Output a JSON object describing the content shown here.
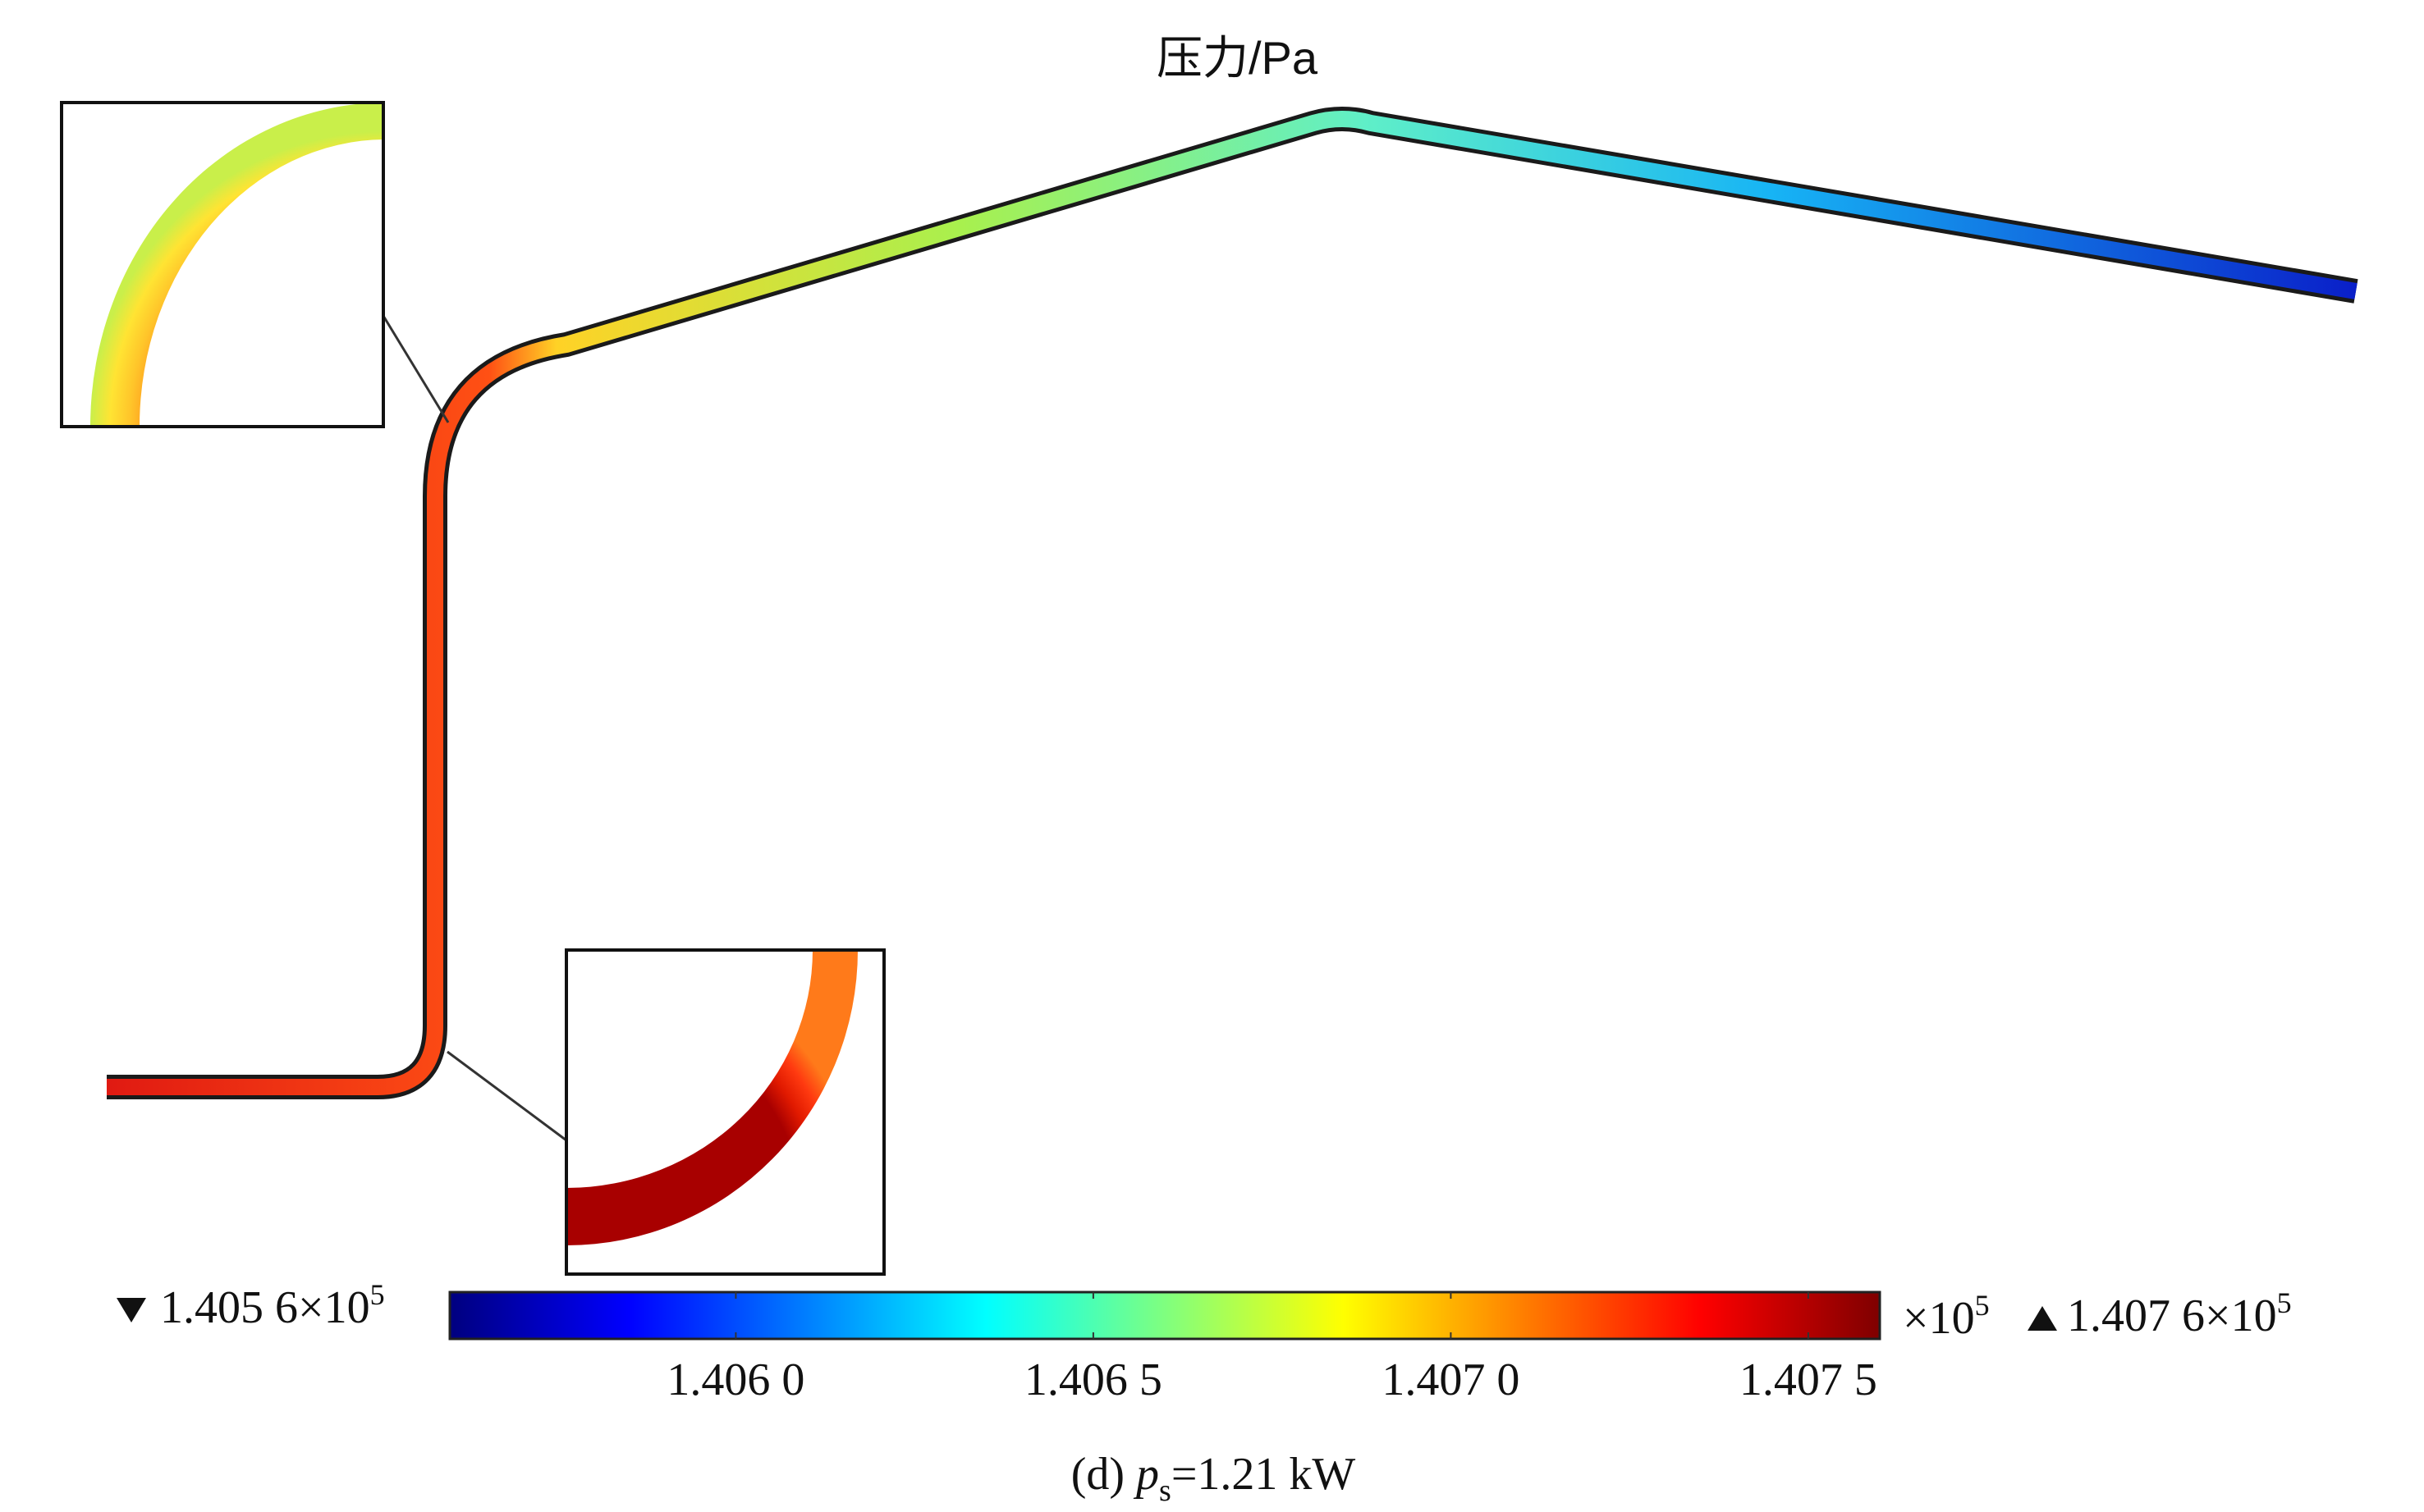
{
  "figure": {
    "title": "压力/Pa",
    "caption_prefix": "(d)",
    "caption_var": "p",
    "caption_sub": "s",
    "caption_suffix": "=1.21 kW",
    "quantity": "pressure"
  },
  "colorbar": {
    "colormap": "rainbow",
    "min_label": "1.405 6×10",
    "min_exp": "5",
    "max_label": "1.407 6×10",
    "max_exp": "5",
    "multiplier": "×10",
    "multiplier_exp": "5",
    "min_value": 1.4056,
    "max_value": 1.4076,
    "ticks": [
      {
        "value": 1.406,
        "label": "1.406 0"
      },
      {
        "value": 1.4065,
        "label": "1.406 5"
      },
      {
        "value": 1.407,
        "label": "1.407 0"
      },
      {
        "value": 1.4075,
        "label": "1.407 5"
      }
    ],
    "stops": [
      "#00007f",
      "#0000ff",
      "#007fff",
      "#00ffff",
      "#7fff7f",
      "#ffff00",
      "#ff7f00",
      "#ff0000",
      "#7f0000"
    ]
  },
  "insets": [
    {
      "name": "upper-bend-zoom",
      "colors": [
        "#ff9a1f",
        "#ffc52a",
        "#ffe433",
        "#c9ef4a"
      ]
    },
    {
      "name": "lower-bend-zoom",
      "colors": [
        "#a80000",
        "#e11a00",
        "#ff3a10",
        "#ff7a1a"
      ]
    }
  ]
}
